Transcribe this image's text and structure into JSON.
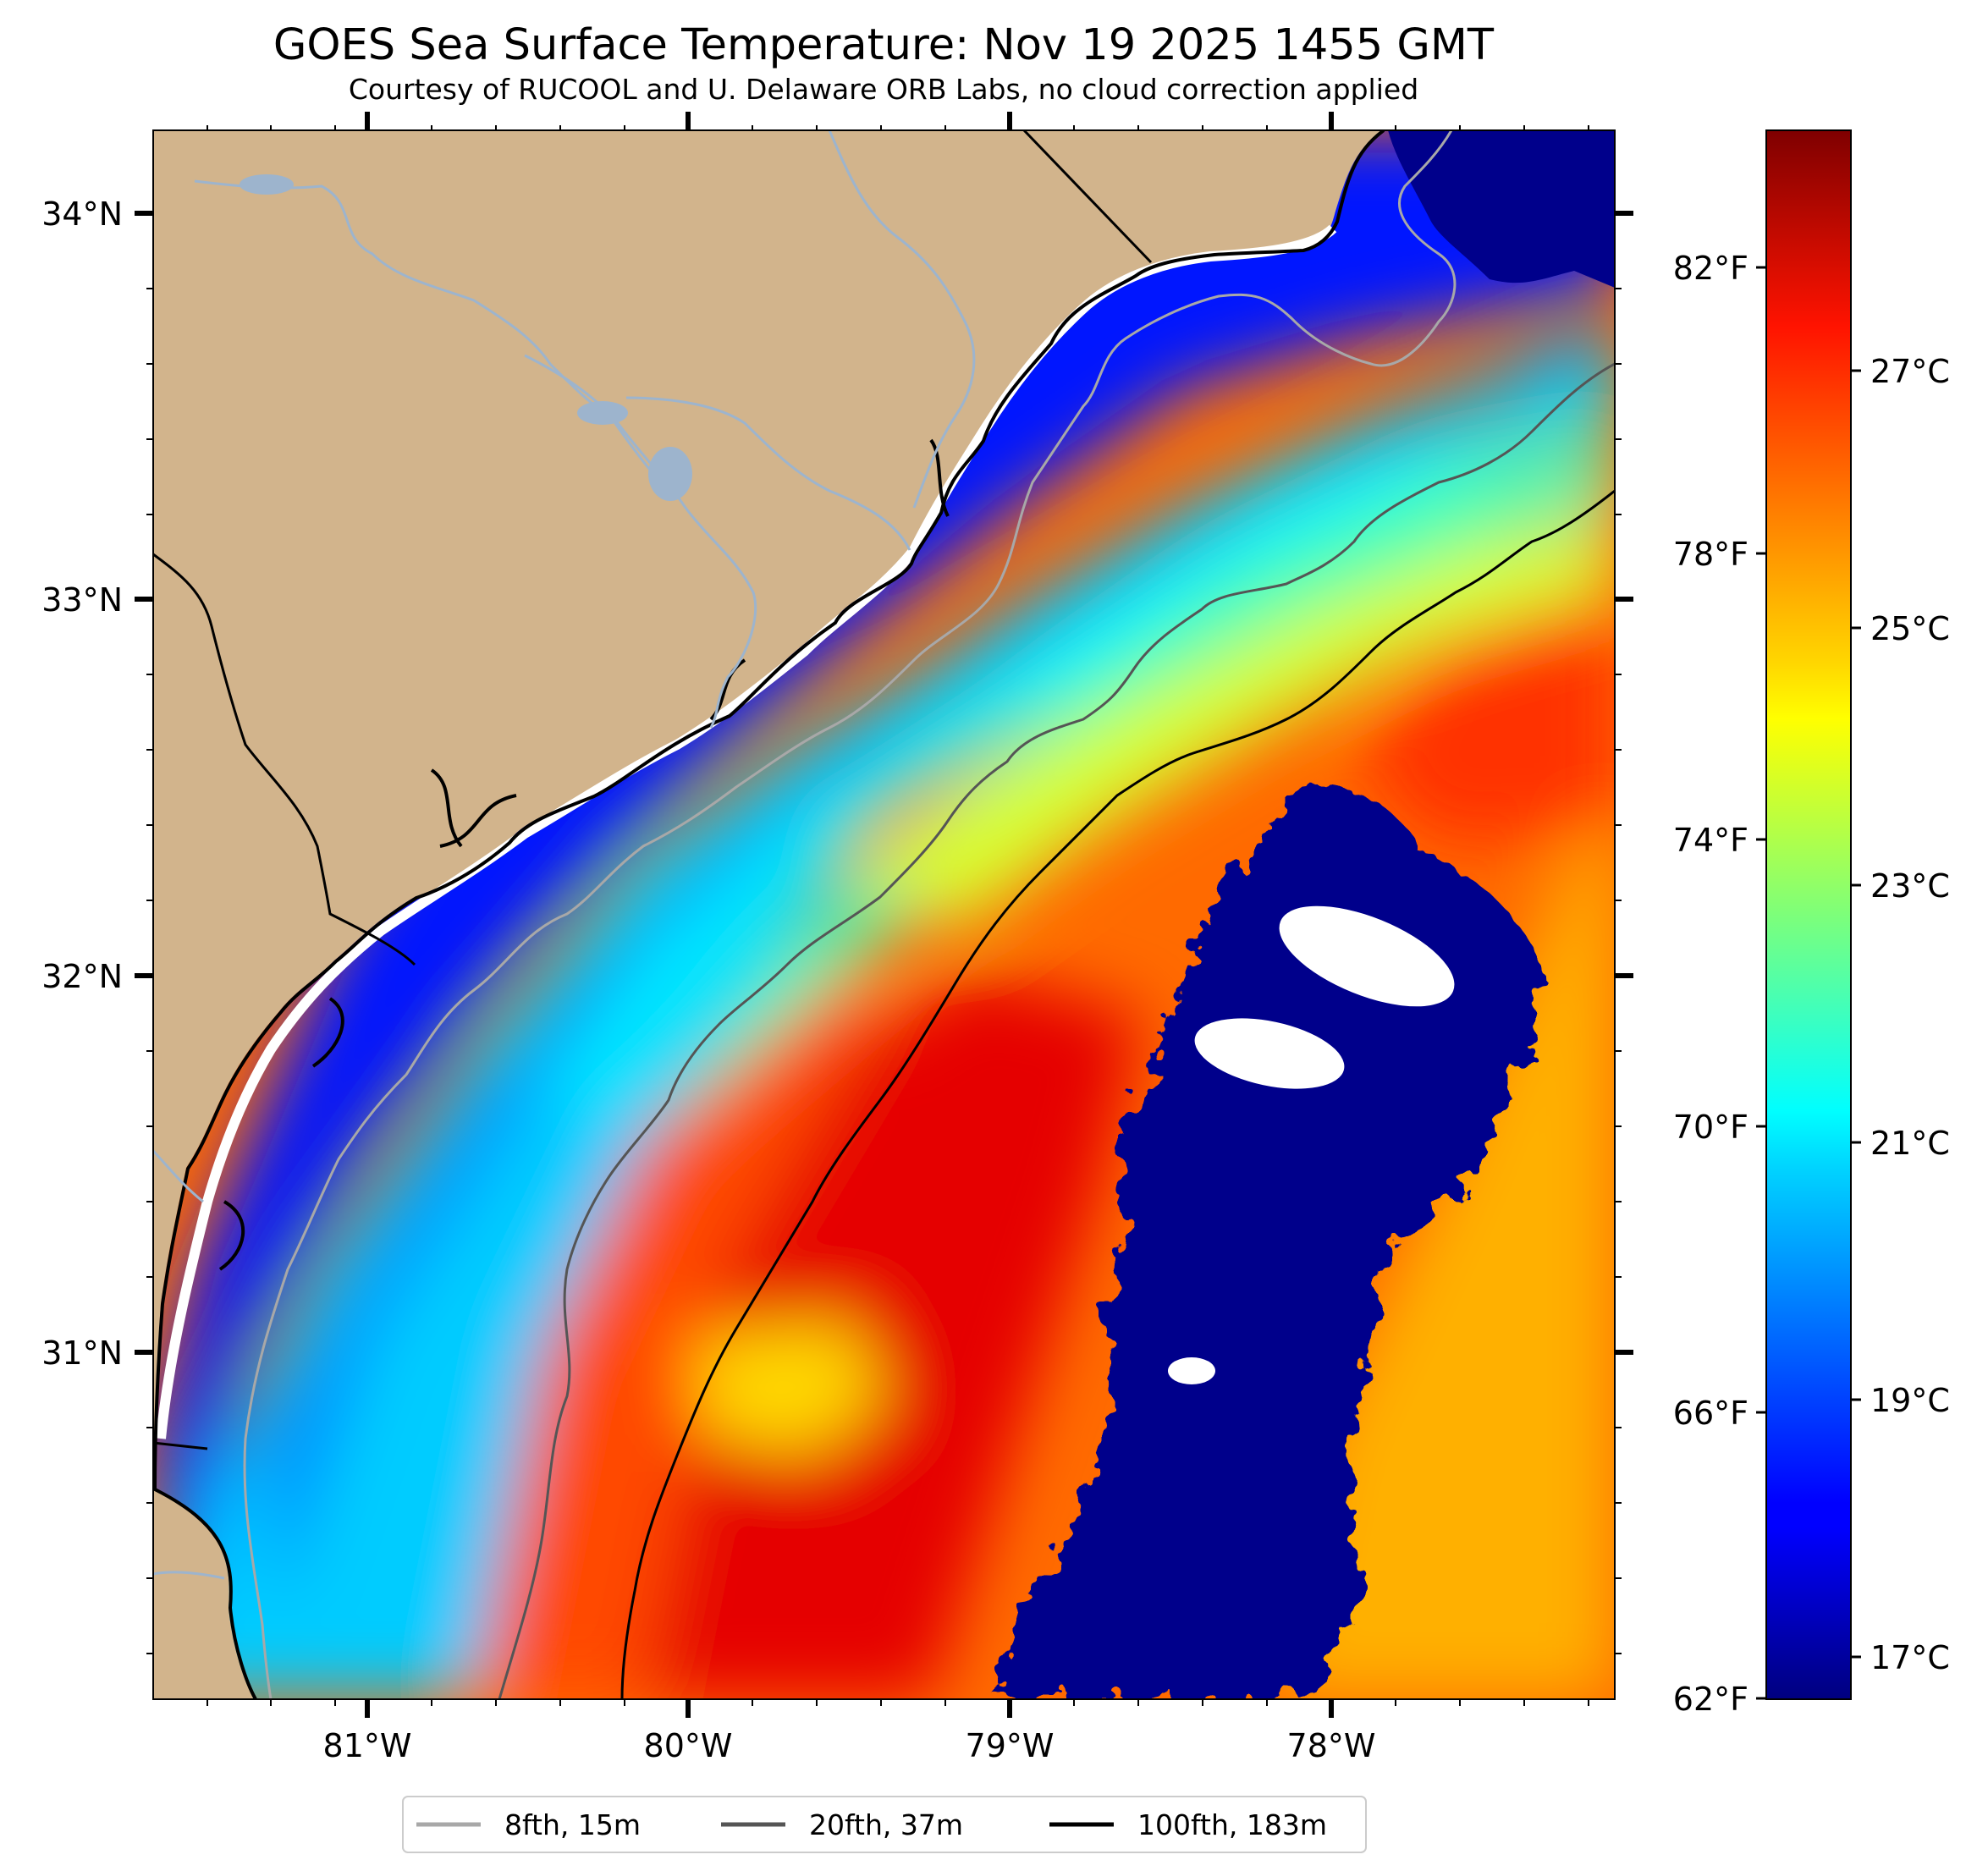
{
  "title": "GOES Sea Surface Temperature: Nov 19 2025 1455 GMT",
  "subtitle": "Courtesy of RUCOOL and U. Delaware ORB Labs, no cloud correction applied",
  "lat_ticks": [
    "34°N",
    "33°N",
    "32°N",
    "31°N"
  ],
  "lon_ticks": [
    "81°W",
    "80°W",
    "79°W",
    "78°W"
  ],
  "colorbar": {
    "fahrenheit_ticks": [
      "82°F",
      "78°F",
      "74°F",
      "70°F",
      "66°F",
      "62°F"
    ],
    "celsius_ticks": [
      "27°C",
      "25°C",
      "23°C",
      "21°C",
      "19°C",
      "17°C"
    ],
    "range_c": [
      16.6,
      28.8
    ],
    "colormap": "jet"
  },
  "legend": [
    {
      "label": "8fth, 15m",
      "color": "#a8a8a8"
    },
    {
      "label": "20fth, 37m",
      "color": "#555555"
    },
    {
      "label": "100fth, 183m",
      "color": "#000000"
    }
  ],
  "colors": {
    "land": "#d2b48c",
    "river": "#9db4cd",
    "cold": "#00008b",
    "warm": "#e00000",
    "no_data": "#ffffff"
  }
}
